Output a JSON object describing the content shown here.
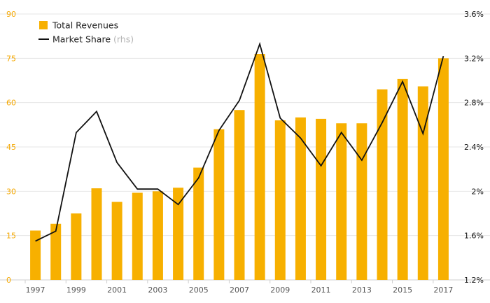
{
  "chart_data": {
    "type": "bar",
    "categories": [
      "1997",
      "1998",
      "1999",
      "2000",
      "2001",
      "2002",
      "2003",
      "2004",
      "2005",
      "2006",
      "2007",
      "2008",
      "2009",
      "2010",
      "2011",
      "2012",
      "2013",
      "2014",
      "2015",
      "2016",
      "2017"
    ],
    "x_tick_labels": [
      "1997",
      "1999",
      "2001",
      "2003",
      "2005",
      "2007",
      "2009",
      "2011",
      "2013",
      "2015",
      "2017"
    ],
    "series": [
      {
        "name": "Total Revenues",
        "type": "bar",
        "axis": "left",
        "color": "#f7b000",
        "values": [
          16.7,
          19.0,
          22.5,
          31.0,
          26.4,
          29.5,
          30.0,
          31.2,
          38.0,
          51.0,
          57.5,
          76.5,
          54.0,
          55.0,
          54.5,
          53.0,
          53.0,
          64.5,
          68.0,
          65.5,
          75.0
        ]
      },
      {
        "name": "Market Share",
        "type": "line",
        "axis": "right",
        "color": "#111111",
        "values": [
          1.55,
          1.64,
          2.53,
          2.72,
          2.26,
          2.02,
          2.02,
          1.88,
          2.12,
          2.55,
          2.82,
          3.33,
          2.66,
          2.48,
          2.23,
          2.53,
          2.28,
          2.62,
          2.99,
          2.52,
          3.22
        ]
      }
    ],
    "left_axis": {
      "ticks": [
        "0",
        "15",
        "30",
        "45",
        "60",
        "75",
        "90"
      ],
      "ylim": [
        0,
        90
      ],
      "color": "#f5a800"
    },
    "right_axis": {
      "ticks": [
        "1.2%",
        "1.6%",
        "2%",
        "2.4%",
        "2.8%",
        "3.2%",
        "3.6%"
      ],
      "ylim": [
        1.2,
        3.6
      ],
      "color": "#111111"
    },
    "legend": {
      "position": "top-left",
      "items": [
        {
          "label": "Total Revenues",
          "note": "",
          "symbol": "square",
          "color": "#f7b000"
        },
        {
          "label": "Market Share",
          "note": "(rhs)",
          "symbol": "line",
          "color": "#111111"
        }
      ]
    },
    "grid": true,
    "grid_color": "#e6e6e6"
  }
}
